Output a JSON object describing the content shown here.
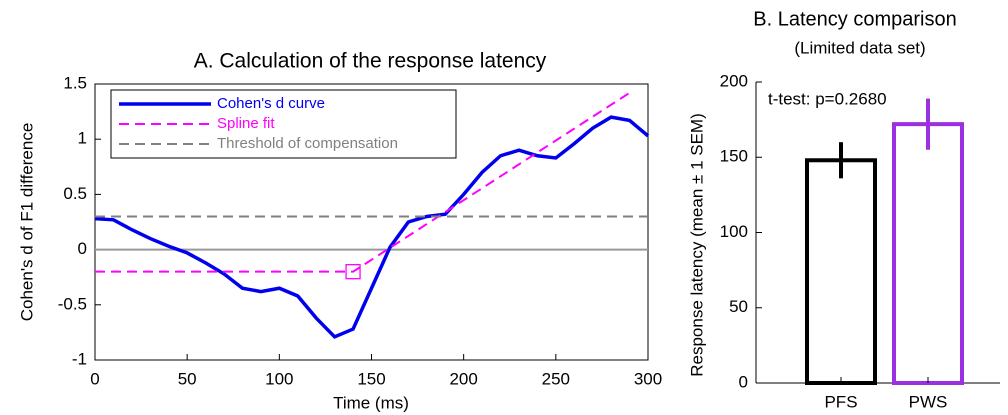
{
  "chart_data": [
    {
      "type": "line",
      "title": "A. Calculation of the response latency",
      "xlabel": "Time (ms)",
      "ylabel": "Cohen's d of F1 difference",
      "xlim": [
        0,
        300
      ],
      "ylim": [
        -1,
        1.5
      ],
      "xticks": [
        0,
        50,
        100,
        150,
        200,
        250,
        300
      ],
      "yticks": [
        -1,
        -0.5,
        0,
        0.5,
        1,
        1.5
      ],
      "hline": 0,
      "legend": "upper left",
      "series": [
        {
          "name": "Cohen's d curve",
          "color": "#0000ee",
          "style": "solid",
          "x": [
            0,
            10,
            20,
            30,
            40,
            50,
            60,
            70,
            80,
            90,
            100,
            110,
            120,
            130,
            140,
            150,
            160,
            170,
            180,
            190,
            200,
            210,
            220,
            230,
            240,
            250,
            260,
            270,
            280,
            290,
            300
          ],
          "values": [
            0.28,
            0.27,
            0.18,
            0.1,
            0.03,
            -0.03,
            -0.12,
            -0.22,
            -0.35,
            -0.38,
            -0.35,
            -0.42,
            -0.62,
            -0.79,
            -0.72,
            -0.35,
            0.02,
            0.25,
            0.3,
            0.32,
            0.5,
            0.7,
            0.85,
            0.9,
            0.85,
            0.83,
            0.96,
            1.1,
            1.2,
            1.17,
            1.03
          ]
        },
        {
          "name": "Spline fit",
          "color": "#ff00ff",
          "style": "dashed",
          "x": [
            0,
            140,
            290
          ],
          "values": [
            -0.2,
            -0.2,
            1.42
          ]
        },
        {
          "name": "Threshold of compensation",
          "color": "#808080",
          "style": "dashed",
          "x": [
            0,
            300
          ],
          "values": [
            0.3,
            0.3
          ]
        }
      ],
      "marker": {
        "x": 140,
        "y": -0.2,
        "color": "#ff00ff"
      }
    },
    {
      "type": "bar",
      "title": "B. Latency comparison",
      "subtitle": "(Limited data set)",
      "ylabel": "Response latency (mean ± 1 SEM)",
      "annotation": "t-test: p=0.2680",
      "categories": [
        "PFS",
        "PWS"
      ],
      "values": [
        148,
        172
      ],
      "errors": [
        12,
        17
      ],
      "colors": [
        "#000000",
        "#9b30e0"
      ],
      "ylim": [
        0,
        200
      ],
      "yticks": [
        0,
        50,
        100,
        150,
        200
      ]
    }
  ]
}
